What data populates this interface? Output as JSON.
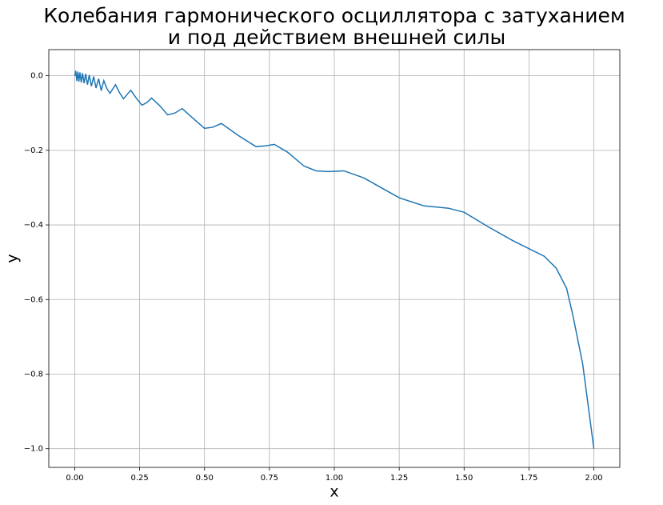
{
  "chart_data": {
    "type": "line",
    "title": [
      "Колебания гармонического осциллятора с затуханием",
      "и под действием внешней силы"
    ],
    "x_label": "x",
    "y_label": "y",
    "color": "#1f77b4",
    "grid": true,
    "xlim": [
      -0.1,
      2.1
    ],
    "ylim": [
      -1.05,
      0.07
    ],
    "xticks": [
      {
        "value": 0,
        "label": "0.00"
      },
      {
        "value": 0.25,
        "label": "0.25"
      },
      {
        "value": 0.5,
        "label": "0.50"
      },
      {
        "value": 0.75,
        "label": "0.75"
      },
      {
        "value": 1,
        "label": "1.00"
      },
      {
        "value": 1.25,
        "label": "1.25"
      },
      {
        "value": 1.5,
        "label": "1.50"
      },
      {
        "value": 1.75,
        "label": "1.75"
      },
      {
        "value": 2,
        "label": "2.00"
      }
    ],
    "yticks": [
      {
        "value": 0,
        "label": "0.0"
      },
      {
        "value": -0.2,
        "label": "−0.2"
      },
      {
        "value": -0.4,
        "label": "−0.4"
      },
      {
        "value": -0.6,
        "label": "−0.6"
      },
      {
        "value": -0.8,
        "label": "−0.8"
      },
      {
        "value": -1,
        "label": "−1.0"
      }
    ],
    "x": [
      0,
      0.004,
      0.008,
      0.012,
      0.016,
      0.02,
      0.025,
      0.03,
      0.036,
      0.042,
      0.049,
      0.056,
      0.064,
      0.073,
      0.082,
      0.092,
      0.102,
      0.112,
      0.124,
      0.136,
      0.146,
      0.157,
      0.172,
      0.188,
      0.202,
      0.216,
      0.237,
      0.259,
      0.278,
      0.296,
      0.327,
      0.358,
      0.386,
      0.414,
      0.457,
      0.5,
      0.532,
      0.565,
      0.63,
      0.698,
      0.735,
      0.769,
      0.82,
      0.883,
      0.93,
      0.975,
      1.037,
      1.114,
      1.18,
      1.253,
      1.346,
      1.438,
      1.5,
      1.593,
      1.685,
      1.809,
      1.855,
      1.895,
      1.92,
      1.957,
      2.0
    ],
    "values": [
      0,
      0.013,
      -0.014,
      0.011,
      -0.016,
      0.009,
      -0.018,
      0.007,
      -0.02,
      0.005,
      -0.024,
      0.002,
      -0.028,
      -0.002,
      -0.033,
      -0.008,
      -0.04,
      -0.013,
      -0.035,
      -0.047,
      -0.036,
      -0.024,
      -0.045,
      -0.062,
      -0.05,
      -0.039,
      -0.06,
      -0.079,
      -0.072,
      -0.06,
      -0.08,
      -0.105,
      -0.1,
      -0.088,
      -0.115,
      -0.141,
      -0.138,
      -0.128,
      -0.16,
      -0.19,
      -0.188,
      -0.184,
      -0.205,
      -0.242,
      -0.255,
      -0.257,
      -0.255,
      -0.274,
      -0.3,
      -0.328,
      -0.349,
      -0.355,
      -0.366,
      -0.405,
      -0.441,
      -0.484,
      -0.516,
      -0.57,
      -0.645,
      -0.773,
      -1.0
    ]
  }
}
